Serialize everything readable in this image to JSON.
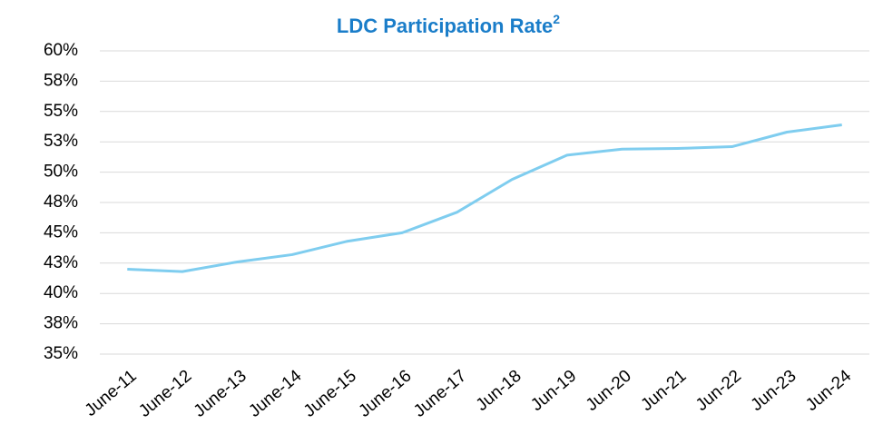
{
  "chart_data": {
    "type": "line",
    "title": "LDC Participation Rate",
    "title_superscript": "2",
    "categories": [
      "June-11",
      "June-12",
      "June-13",
      "June-14",
      "June-15",
      "June-16",
      "June-17",
      "Jun-18",
      "Jun-19",
      "Jun-20",
      "Jun-21",
      "Jun-22",
      "Jun-23",
      "Jun-24"
    ],
    "series": [
      {
        "name": "LDC Participation Rate",
        "color": "#7fcdef",
        "values": [
          42.0,
          41.8,
          42.6,
          43.2,
          44.3,
          45.0,
          46.7,
          49.4,
          51.4,
          51.9,
          51.95,
          52.1,
          53.3,
          53.9
        ]
      }
    ],
    "ylim": [
      35,
      60
    ],
    "yticks": [
      {
        "value": 35,
        "label": "35%"
      },
      {
        "value": 37.5,
        "label": "38%"
      },
      {
        "value": 40,
        "label": "40%"
      },
      {
        "value": 42.5,
        "label": "43%"
      },
      {
        "value": 45,
        "label": "45%"
      },
      {
        "value": 47.5,
        "label": "48%"
      },
      {
        "value": 50,
        "label": "50%"
      },
      {
        "value": 52.5,
        "label": "53%"
      },
      {
        "value": 55,
        "label": "55%"
      },
      {
        "value": 57.5,
        "label": "58%"
      },
      {
        "value": 60,
        "label": "60%"
      }
    ],
    "grid": true
  }
}
